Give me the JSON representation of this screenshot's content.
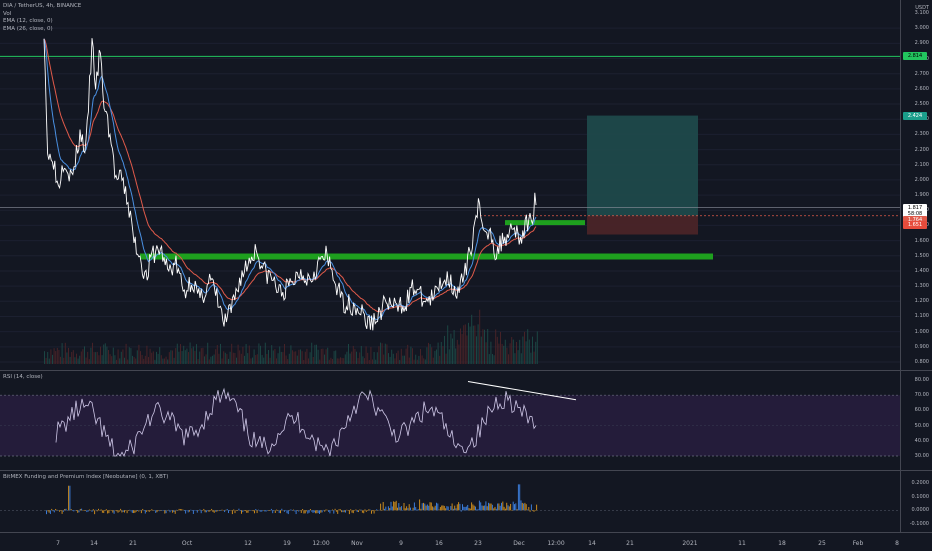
{
  "header": {
    "symbol_line": "DIA / TetherUS, 4h, BINANCE",
    "vol_label": "Vol",
    "ema12_label": "EMA (12, close, 0)",
    "ema26_label": "EMA (26, close, 0)"
  },
  "currency": "USDT",
  "price_axis": [
    "3.100",
    "3.000",
    "2.900",
    "2.800",
    "2.700",
    "2.600",
    "2.500",
    "2.400",
    "2.300",
    "2.200",
    "2.100",
    "2.000",
    "1.900",
    "1.800",
    "1.700",
    "1.600",
    "1.500",
    "1.400",
    "1.300",
    "1.200",
    "1.100",
    "1.000",
    "0.900",
    "0.800"
  ],
  "price_tags": {
    "resistance": "2.814",
    "target": "2.424",
    "last": "1.817",
    "countdown": "58:08",
    "ema_fast": "1.764",
    "ema_slow": "1.651"
  },
  "rsi": {
    "label": "RSI (14, close)",
    "axis": [
      "80.00",
      "70.00",
      "60.00",
      "50.00",
      "40.00",
      "30.00"
    ]
  },
  "funding": {
    "label": "BitMEX Funding and Premium Index [Neobutane] (0, 1, XBT)",
    "axis": [
      "0.2000",
      "0.1000",
      "0.0000",
      "-0.1000"
    ]
  },
  "time_axis": [
    "7",
    "14",
    "21",
    "Oct",
    "12",
    "19",
    "12:00",
    "Nov",
    "9",
    "16",
    "23",
    "Dec",
    "12:00",
    "14",
    "21",
    "2021",
    "11",
    "18",
    "25",
    "Feb",
    "8"
  ],
  "colors": {
    "background": "#131722",
    "resistance_line": "#22c55e",
    "support_zone": "#1ea01e",
    "target_zone": "#1f4b4d",
    "stop_zone": "#4a2428",
    "price_line": "#ffffff",
    "ema_fast": "#4a90e2",
    "ema_slow": "#e05a4a",
    "rsi_line": "#cfc8e8",
    "rsi_band": "#241c3a"
  }
}
